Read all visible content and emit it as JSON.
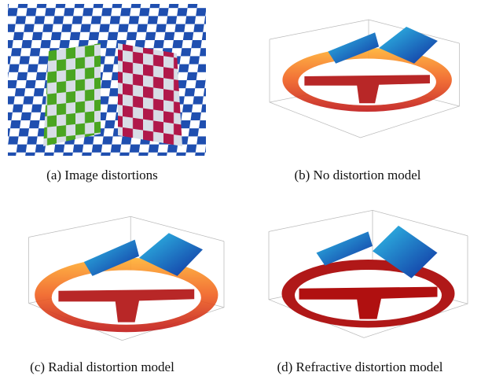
{
  "subfigures": [
    {
      "caption": "(a) Image distortions"
    },
    {
      "caption": "(b) No distortion model"
    },
    {
      "caption": "(c) Radial distortion model"
    },
    {
      "caption": "(d) Refractive distortion model"
    }
  ]
}
